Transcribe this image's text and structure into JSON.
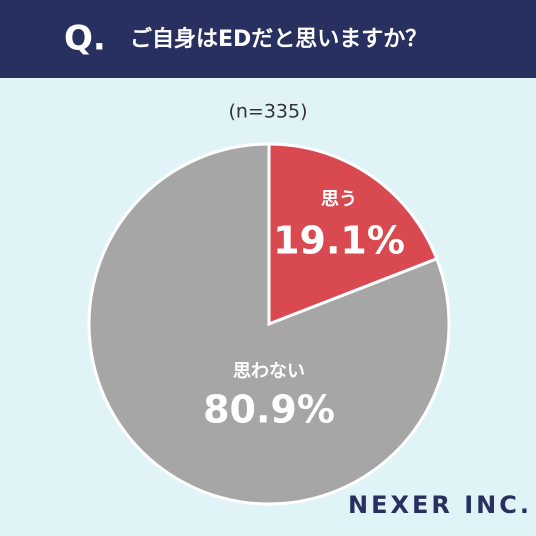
{
  "chart_data": {
    "type": "pie",
    "q_label": "Q.",
    "title": "ご自身はEDだと思いますか？",
    "subtitle": "(n=335)",
    "categories": [
      "思う",
      "思わない"
    ],
    "values": [
      19.1,
      80.9
    ],
    "value_labels": [
      "19.1%",
      "80.9%"
    ],
    "colors": [
      "#d94a50",
      "#a6a6a6"
    ],
    "brand": "NEXER INC."
  }
}
